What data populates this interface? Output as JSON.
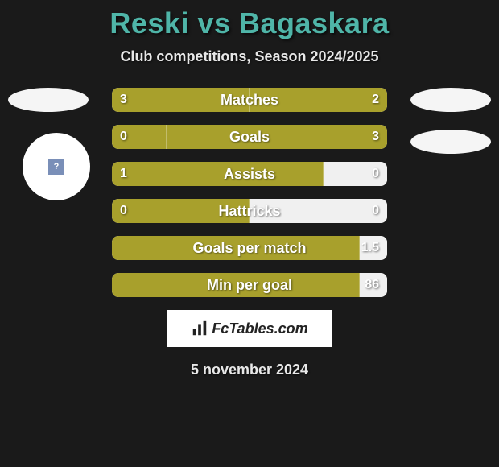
{
  "title": "Reski vs Bagaskara",
  "subtitle": "Club competitions, Season 2024/2025",
  "date": "5 november 2024",
  "footer_brand": "FcTables.com",
  "colors": {
    "title_color": "#4fb5a8",
    "bar_fill": "#a8a02c",
    "bar_empty": "#f0f0f0",
    "background": "#1a1a1a"
  },
  "stats": [
    {
      "label": "Matches",
      "left_val": "3",
      "right_val": "2",
      "left_pct": 50,
      "right_fill": true
    },
    {
      "label": "Goals",
      "left_val": "0",
      "right_val": "3",
      "left_pct": 20,
      "right_fill": true
    },
    {
      "label": "Assists",
      "left_val": "1",
      "right_val": "0",
      "left_pct": 77,
      "right_fill": false
    },
    {
      "label": "Hattricks",
      "left_val": "0",
      "right_val": "0",
      "left_pct": 50,
      "right_fill": false
    },
    {
      "label": "Goals per match",
      "left_val": "",
      "right_val": "1.5",
      "left_pct": 90,
      "right_fill": false
    },
    {
      "label": "Min per goal",
      "left_val": "",
      "right_val": "86",
      "left_pct": 90,
      "right_fill": false
    }
  ]
}
